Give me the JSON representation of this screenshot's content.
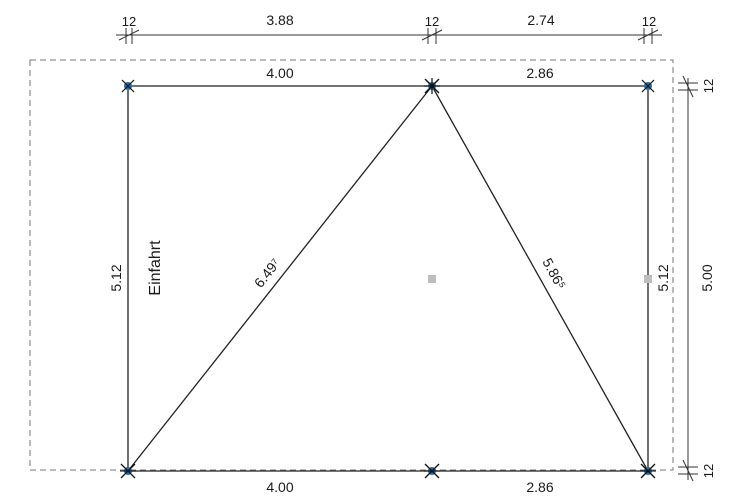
{
  "dimensions": {
    "top_chain": [
      "12",
      "3.88",
      "12",
      "2.74",
      "12"
    ],
    "top_edge": [
      "4.00",
      "2.86"
    ],
    "bottom_edge": [
      "4.00",
      "2.86"
    ],
    "left_side": "5.12",
    "right_inner": "5.12",
    "right_chain": [
      "12",
      "5.00",
      "12"
    ],
    "diagonal_left": "6.49⁷",
    "diagonal_right": "5.86⁵"
  },
  "labels": {
    "entrance": "Einfahrt"
  },
  "colors": {
    "line": "#222222",
    "dashed": "#777777",
    "node": "#1f6fb0",
    "marker": "#bdbdbd"
  }
}
